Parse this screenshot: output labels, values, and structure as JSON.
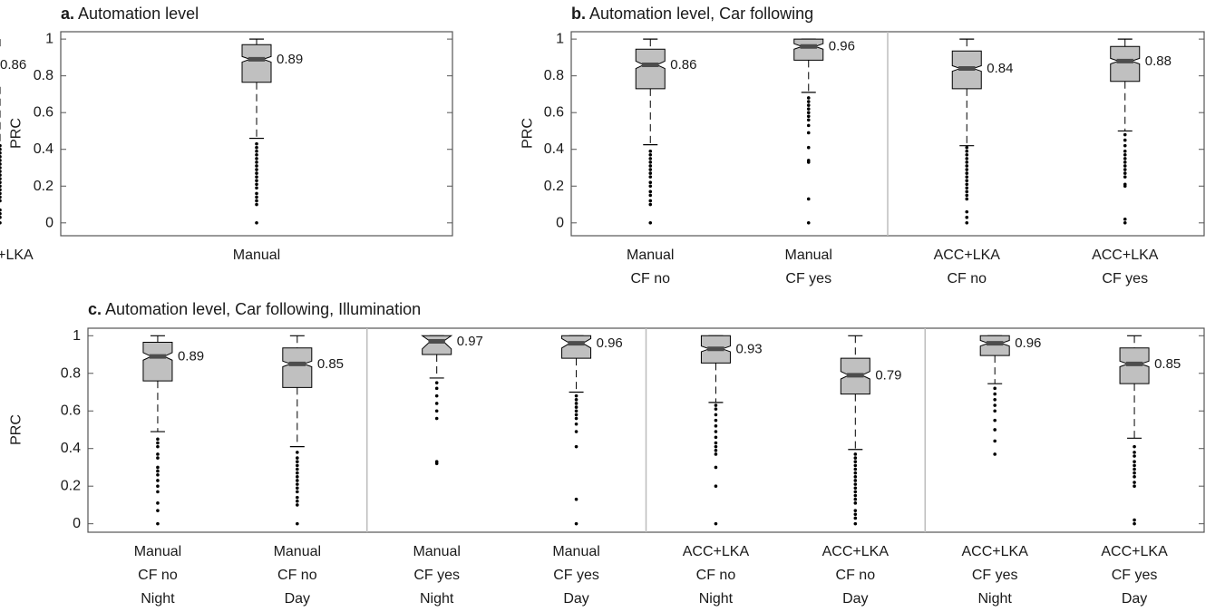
{
  "colors": {
    "box_fill": "#c0c0c0",
    "median": "#4d4d4d",
    "frame": "#555555",
    "divider": "#bdbdbd",
    "ink": "#000000"
  },
  "chart_data": [
    {
      "type": "boxplot",
      "panel_letter": "a.",
      "title": "Automation level",
      "ylabel": "PRC",
      "ylim": [
        -0.07,
        1.04
      ],
      "yticks": [
        "0",
        "0.2",
        "0.4",
        "0.6",
        "0.8",
        "1"
      ],
      "groups": [
        1
      ],
      "boxes": [
        {
          "lines": [
            "Manual"
          ],
          "q1": 0.765,
          "median": 0.89,
          "q3": 0.97,
          "whisker_low": 0.46,
          "whisker_high": 1.0,
          "notch": 0.015,
          "median_label": "0.89",
          "outliers": [
            0.0,
            0.1,
            0.12,
            0.14,
            0.16,
            0.19,
            0.21,
            0.23,
            0.25,
            0.27,
            0.29,
            0.31,
            0.33,
            0.35,
            0.37,
            0.39,
            0.41,
            0.43
          ]
        },
        {
          "lines": [
            "ACC+LKA"
          ],
          "q1": 0.74,
          "median": 0.86,
          "q3": 0.945,
          "whisker_low": 0.435,
          "whisker_high": 1.0,
          "notch": 0.015,
          "median_label": "0.86",
          "outliers": [
            0.0,
            0.03,
            0.05,
            0.07,
            0.12,
            0.14,
            0.16,
            0.18,
            0.2,
            0.22,
            0.24,
            0.26,
            0.28,
            0.3,
            0.32,
            0.34,
            0.36,
            0.38,
            0.4,
            0.42
          ]
        }
      ]
    },
    {
      "type": "boxplot",
      "panel_letter": "b.",
      "title": "Automation level, Car following",
      "ylabel": "PRC",
      "ylim": [
        -0.07,
        1.04
      ],
      "yticks": [
        "0",
        "0.2",
        "0.4",
        "0.6",
        "0.8",
        "1"
      ],
      "groups": [
        2,
        2
      ],
      "boxes": [
        {
          "lines": [
            "Manual",
            "CF no"
          ],
          "q1": 0.73,
          "median": 0.86,
          "q3": 0.945,
          "whisker_low": 0.425,
          "whisker_high": 1.0,
          "notch": 0.02,
          "median_label": "0.86",
          "outliers": [
            0.0,
            0.1,
            0.12,
            0.15,
            0.17,
            0.2,
            0.22,
            0.25,
            0.27,
            0.29,
            0.31,
            0.33,
            0.35,
            0.37,
            0.39
          ]
        },
        {
          "lines": [
            "Manual",
            "CF yes"
          ],
          "q1": 0.885,
          "median": 0.96,
          "q3": 1.0,
          "whisker_low": 0.71,
          "whisker_high": 1.0,
          "notch": 0.015,
          "median_label": "0.96",
          "outliers": [
            0.0,
            0.13,
            0.33,
            0.34,
            0.41,
            0.49,
            0.53,
            0.56,
            0.58,
            0.6,
            0.62,
            0.64,
            0.66,
            0.68
          ]
        },
        {
          "lines": [
            "ACC+LKA",
            "CF no"
          ],
          "q1": 0.73,
          "median": 0.84,
          "q3": 0.935,
          "whisker_low": 0.42,
          "whisker_high": 1.0,
          "notch": 0.015,
          "median_label": "0.84",
          "outliers": [
            0.0,
            0.03,
            0.06,
            0.13,
            0.15,
            0.17,
            0.19,
            0.21,
            0.23,
            0.25,
            0.27,
            0.29,
            0.31,
            0.33,
            0.35,
            0.37,
            0.39,
            0.41
          ]
        },
        {
          "lines": [
            "ACC+LKA",
            "CF yes"
          ],
          "q1": 0.77,
          "median": 0.88,
          "q3": 0.96,
          "whisker_low": 0.5,
          "whisker_high": 1.0,
          "notch": 0.015,
          "median_label": "0.88",
          "outliers": [
            0.0,
            0.02,
            0.2,
            0.21,
            0.25,
            0.27,
            0.29,
            0.31,
            0.33,
            0.35,
            0.37,
            0.39,
            0.42,
            0.45,
            0.48
          ]
        }
      ]
    },
    {
      "type": "boxplot",
      "panel_letter": "c.",
      "title": "Automation level, Car following, Illumination",
      "ylabel": "PRC",
      "ylim": [
        -0.045,
        1.04
      ],
      "yticks": [
        "0",
        "0.2",
        "0.4",
        "0.6",
        "0.8",
        "1"
      ],
      "groups": [
        2,
        2,
        2,
        2
      ],
      "boxes": [
        {
          "lines": [
            "Manual",
            "CF no",
            "Night"
          ],
          "q1": 0.76,
          "median": 0.89,
          "q3": 0.965,
          "whisker_low": 0.49,
          "whisker_high": 1.0,
          "notch": 0.02,
          "median_label": "0.89",
          "outliers": [
            0.0,
            0.07,
            0.11,
            0.17,
            0.2,
            0.23,
            0.26,
            0.28,
            0.3,
            0.35,
            0.37,
            0.41,
            0.43,
            0.45
          ]
        },
        {
          "lines": [
            "Manual",
            "CF no",
            "Day"
          ],
          "q1": 0.725,
          "median": 0.85,
          "q3": 0.935,
          "whisker_low": 0.41,
          "whisker_high": 1.0,
          "notch": 0.015,
          "median_label": "0.85",
          "outliers": [
            0.0,
            0.1,
            0.12,
            0.14,
            0.17,
            0.19,
            0.21,
            0.23,
            0.25,
            0.27,
            0.29,
            0.31,
            0.33,
            0.35,
            0.38
          ]
        },
        {
          "lines": [
            "Manual",
            "CF yes",
            "Night"
          ],
          "q1": 0.9,
          "median": 0.97,
          "q3": 1.0,
          "whisker_low": 0.775,
          "whisker_high": 1.0,
          "notch": 0.04,
          "median_label": "0.97",
          "outliers": [
            0.32,
            0.33,
            0.56,
            0.6,
            0.64,
            0.68,
            0.72,
            0.75
          ]
        },
        {
          "lines": [
            "Manual",
            "CF yes",
            "Day"
          ],
          "q1": 0.88,
          "median": 0.96,
          "q3": 1.0,
          "whisker_low": 0.7,
          "whisker_high": 1.0,
          "notch": 0.025,
          "median_label": "0.96",
          "outliers": [
            0.0,
            0.13,
            0.41,
            0.49,
            0.53,
            0.56,
            0.58,
            0.6,
            0.62,
            0.64,
            0.66,
            0.68
          ]
        },
        {
          "lines": [
            "ACC+LKA",
            "CF no",
            "Night"
          ],
          "q1": 0.855,
          "median": 0.93,
          "q3": 1.0,
          "whisker_low": 0.645,
          "whisker_high": 1.0,
          "notch": 0.015,
          "median_label": "0.93",
          "outliers": [
            0.0,
            0.2,
            0.3,
            0.37,
            0.39,
            0.41,
            0.43,
            0.46,
            0.49,
            0.52,
            0.55,
            0.58,
            0.61,
            0.63
          ]
        },
        {
          "lines": [
            "ACC+LKA",
            "CF no",
            "Day"
          ],
          "q1": 0.69,
          "median": 0.79,
          "q3": 0.88,
          "whisker_low": 0.395,
          "whisker_high": 1.0,
          "notch": 0.02,
          "median_label": "0.79",
          "outliers": [
            0.0,
            0.03,
            0.05,
            0.07,
            0.11,
            0.13,
            0.15,
            0.17,
            0.19,
            0.21,
            0.23,
            0.25,
            0.27,
            0.29,
            0.31,
            0.33,
            0.35,
            0.37
          ]
        },
        {
          "lines": [
            "ACC+LKA",
            "CF yes",
            "Night"
          ],
          "q1": 0.895,
          "median": 0.96,
          "q3": 1.0,
          "whisker_low": 0.745,
          "whisker_high": 1.0,
          "notch": 0.015,
          "median_label": "0.96",
          "outliers": [
            0.37,
            0.44,
            0.5,
            0.55,
            0.6,
            0.63,
            0.66,
            0.69,
            0.72
          ]
        },
        {
          "lines": [
            "ACC+LKA",
            "CF yes",
            "Day"
          ],
          "q1": 0.745,
          "median": 0.85,
          "q3": 0.935,
          "whisker_low": 0.455,
          "whisker_high": 1.0,
          "notch": 0.015,
          "median_label": "0.85",
          "outliers": [
            0.0,
            0.02,
            0.2,
            0.22,
            0.25,
            0.27,
            0.29,
            0.31,
            0.33,
            0.36,
            0.38,
            0.41
          ]
        }
      ]
    }
  ]
}
